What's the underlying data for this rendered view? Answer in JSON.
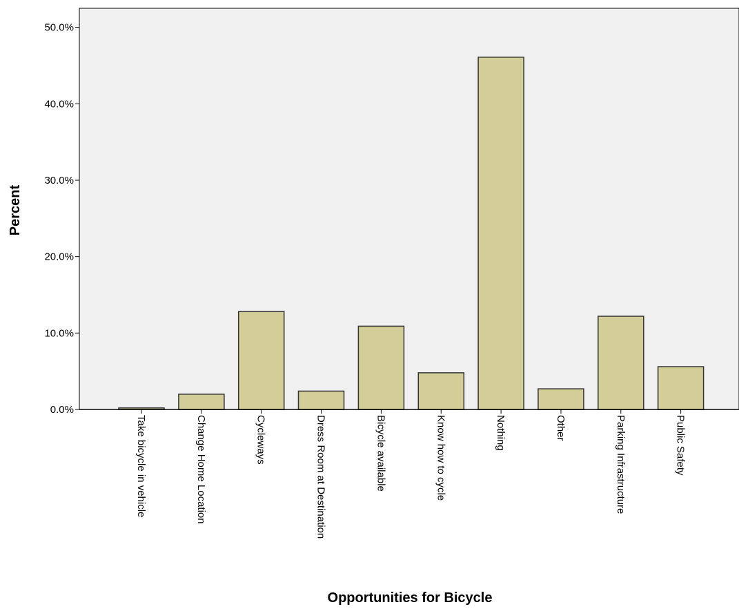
{
  "chart_data": {
    "type": "bar",
    "title": "",
    "xlabel": "Opportunities for Bicycle",
    "ylabel": "Percent",
    "categories": [
      "Take bicycle in vehicle",
      "Change Home Location",
      "Cycleways",
      "Dress Room at Destination",
      "Bicycle available",
      "Know how to cycle",
      "Nothing",
      "Other",
      "Parking Infrastructure",
      "Public Safety"
    ],
    "values": [
      0.2,
      2.0,
      12.8,
      2.4,
      10.9,
      4.8,
      46.1,
      2.7,
      12.2,
      5.6
    ],
    "ylim": [
      0,
      52.5
    ],
    "yticks": [
      0,
      10,
      20,
      30,
      40,
      50
    ],
    "ytick_labels": [
      "0.0%",
      "10.0%",
      "20.0%",
      "30.0%",
      "40.0%",
      "50.0%"
    ],
    "grid": false,
    "colors": {
      "plot_background": "#f0f0f0",
      "bar_fill": "#d3ce97",
      "bar_stroke": "#333333"
    }
  }
}
